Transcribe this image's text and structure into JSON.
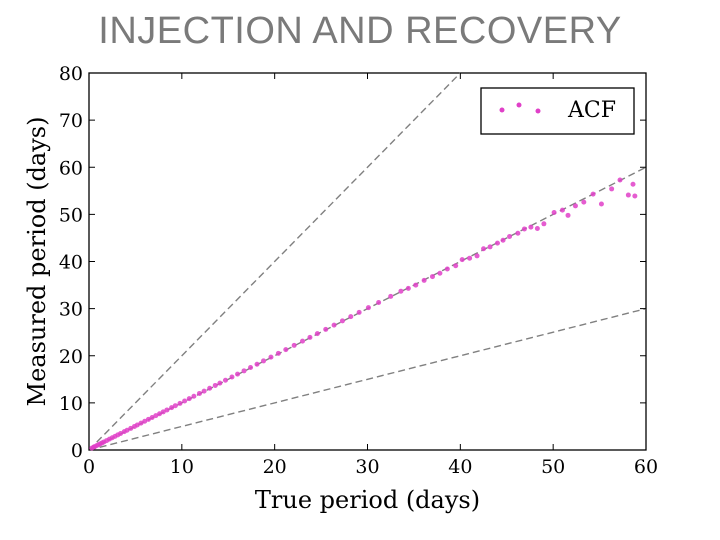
{
  "page_title": "INJECTION AND RECOVERY",
  "chart_data": {
    "type": "scatter",
    "title": "INJECTION AND RECOVERY",
    "xlabel": "True period (days)",
    "ylabel": "Measured period (days)",
    "xlim": [
      0,
      60
    ],
    "ylim": [
      0,
      80
    ],
    "xticks": [
      0,
      10,
      20,
      30,
      40,
      50,
      60
    ],
    "yticks": [
      0,
      10,
      20,
      30,
      40,
      50,
      60,
      70,
      80
    ],
    "grid": false,
    "legend_position": "top-right",
    "colors": {
      "points": "#e040c8",
      "reference_lines": "#808080"
    },
    "reference_lines": [
      {
        "slope": 2,
        "style": "dashed"
      },
      {
        "slope": 1,
        "style": "dashed"
      },
      {
        "slope": 0.5,
        "style": "dashed"
      }
    ],
    "series": [
      {
        "name": "ACF",
        "x": [
          0.3,
          0.5,
          0.6,
          0.8,
          1.0,
          1.2,
          1.4,
          1.6,
          1.9,
          2.2,
          2.5,
          2.8,
          3.1,
          3.4,
          3.8,
          4.1,
          4.5,
          4.9,
          5.2,
          5.6,
          6.0,
          6.4,
          6.8,
          7.2,
          7.6,
          8.0,
          8.4,
          8.9,
          9.3,
          9.8,
          10.3,
          10.8,
          11.3,
          11.9,
          12.4,
          13.0,
          13.6,
          14.1,
          14.7,
          15.4,
          16.0,
          16.7,
          17.4,
          18.1,
          18.8,
          19.6,
          20.4,
          21.2,
          22.1,
          23.0,
          23.8,
          24.6,
          25.5,
          26.4,
          27.3,
          28.2,
          29.1,
          30.1,
          31.2,
          32.5,
          33.6,
          34.4,
          35.2,
          36.1,
          37.0,
          37.8,
          38.6,
          39.5,
          40.2,
          41.0,
          41.8,
          42.5,
          43.2,
          44.0,
          44.6,
          45.3,
          46.2,
          46.9,
          47.6,
          48.3,
          49.0,
          50.1,
          51.0,
          51.6,
          52.4,
          53.3,
          54.3,
          55.2,
          56.3,
          57.2,
          58.1,
          58.6,
          58.8
        ],
        "y": [
          0.4,
          0.6,
          0.7,
          0.9,
          1.1,
          1.3,
          1.5,
          1.7,
          2.0,
          2.3,
          2.6,
          2.9,
          3.2,
          3.5,
          3.9,
          4.2,
          4.6,
          5.0,
          5.3,
          5.7,
          6.1,
          6.5,
          6.9,
          7.3,
          7.7,
          8.1,
          8.5,
          9.0,
          9.4,
          9.9,
          10.4,
          10.9,
          11.4,
          12.0,
          12.5,
          13.1,
          13.7,
          14.2,
          14.8,
          15.5,
          16.1,
          16.8,
          17.5,
          18.2,
          18.9,
          19.7,
          20.5,
          21.3,
          22.2,
          23.1,
          23.9,
          24.7,
          25.6,
          26.5,
          27.4,
          28.3,
          29.2,
          30.2,
          31.3,
          32.6,
          33.7,
          34.3,
          35.0,
          36.0,
          36.8,
          37.5,
          38.4,
          39.1,
          40.4,
          40.7,
          41.2,
          42.7,
          43.1,
          43.9,
          44.5,
          45.3,
          46.0,
          46.9,
          47.3,
          47.0,
          48.0,
          50.4,
          50.9,
          49.8,
          51.8,
          52.6,
          54.3,
          52.2,
          55.4,
          57.3,
          54.1,
          56.4,
          53.9
        ]
      }
    ]
  }
}
